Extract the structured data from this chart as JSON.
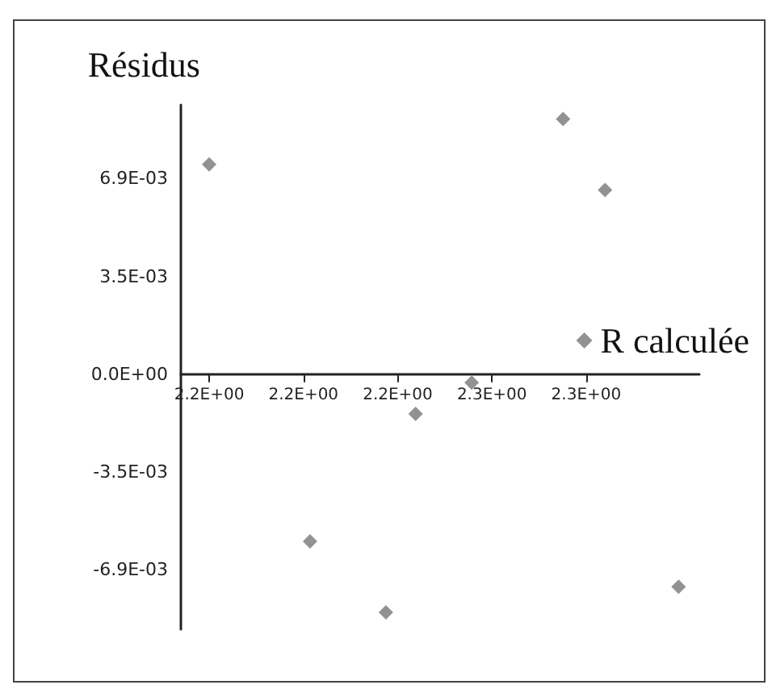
{
  "chart_data": {
    "type": "scatter",
    "ylabel": "Résidus",
    "x": [
      2.2,
      2.2751,
      2.284,
      2.2557,
      2.2438,
      2.2214,
      2.2375,
      2.2996
    ],
    "series": [
      {
        "name": "R calculée",
        "color": "#777777",
        "values": [
          0.0074,
          0.009,
          0.0065,
          -0.0003,
          -0.0014,
          -0.0059,
          -0.0084,
          -0.0075
        ]
      }
    ],
    "xlim": [
      2.194,
      2.304
    ],
    "xticks": [
      {
        "value": 2.2,
        "label": "2.2E+00"
      },
      {
        "value": 2.22,
        "label": "2.2E+00"
      },
      {
        "value": 2.24,
        "label": "2.2E+00"
      },
      {
        "value": 2.26,
        "label": "2.3E+00"
      },
      {
        "value": 2.28,
        "label": "2.3E+00"
      }
    ],
    "ylim": [
      -0.009,
      0.0095
    ],
    "yticks": [
      {
        "value": -0.0069,
        "label": "-6.9E-03"
      },
      {
        "value": -0.00345,
        "label": "-3.5E-03"
      },
      {
        "value": 0,
        "label": "0.0E+00"
      },
      {
        "value": 0.00345,
        "label": "3.5E-03"
      },
      {
        "value": 0.0069,
        "label": "6.9E-03"
      }
    ],
    "marker": "diamond",
    "legend": "right",
    "grid": false
  }
}
